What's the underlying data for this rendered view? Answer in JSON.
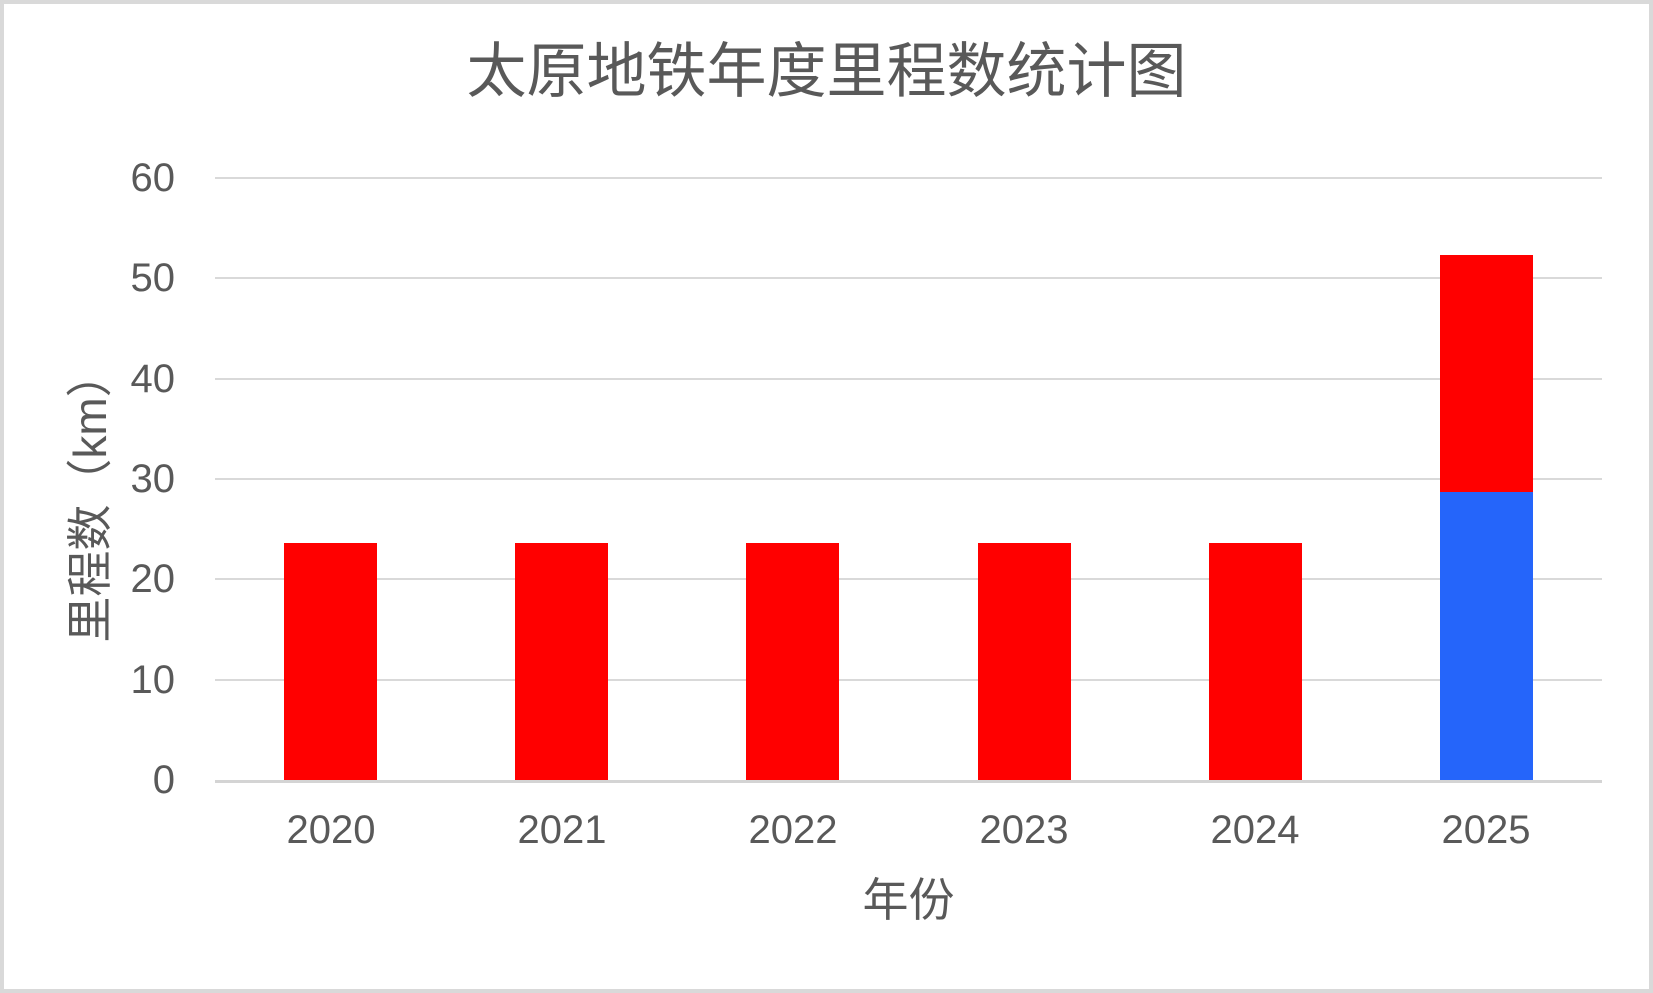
{
  "chart_data": {
    "type": "bar",
    "stacked": true,
    "title": "太原地铁年度里程数统计图",
    "xlabel": "年份",
    "ylabel": "里程数（km）",
    "categories": [
      "2020",
      "2021",
      "2022",
      "2023",
      "2024",
      "2025"
    ],
    "series": [
      {
        "name": "blue-series",
        "color": "#2565fa",
        "values": [
          0,
          0,
          0,
          0,
          0,
          28.7
        ]
      },
      {
        "name": "red-series",
        "color": "#ff0000",
        "values": [
          23.65,
          23.65,
          23.65,
          23.65,
          23.65,
          23.65
        ]
      }
    ],
    "ylim": [
      0,
      60
    ],
    "yticks": [
      0,
      10,
      20,
      30,
      40,
      50,
      60
    ],
    "grid": true,
    "legend": "none",
    "colors": {
      "text": "#595959",
      "gridline": "#d9d9d9",
      "frame": "#d9d9d9",
      "background": "#ffffff"
    }
  }
}
